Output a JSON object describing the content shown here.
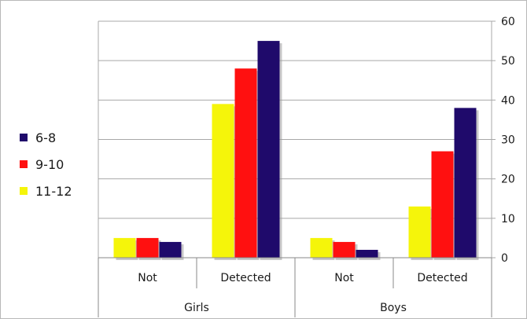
{
  "chart_data": {
    "type": "bar",
    "groups": [
      {
        "label": "Girls",
        "categories": [
          "Not",
          "Detected"
        ]
      },
      {
        "label": "Boys",
        "categories": [
          "Not",
          "Detected"
        ]
      }
    ],
    "categories": [
      "Not",
      "Detected",
      "Not",
      "Detected"
    ],
    "series": [
      {
        "name": "6-8",
        "color": "#1f0a6b",
        "values": [
          4,
          55,
          2,
          38
        ]
      },
      {
        "name": "9-10",
        "color": "#ff1010",
        "values": [
          5,
          48,
          4,
          27
        ]
      },
      {
        "name": "11-12",
        "color": "#f5f50a",
        "values": [
          5,
          39,
          5,
          13
        ]
      }
    ],
    "ylim": [
      0,
      60
    ],
    "yticks": [
      0,
      10,
      20,
      30,
      40,
      50,
      60
    ],
    "y_axis_side": "right",
    "grid": true,
    "legend_position": "left",
    "series_order_in_group": [
      "11-12",
      "9-10",
      "6-8"
    ]
  }
}
